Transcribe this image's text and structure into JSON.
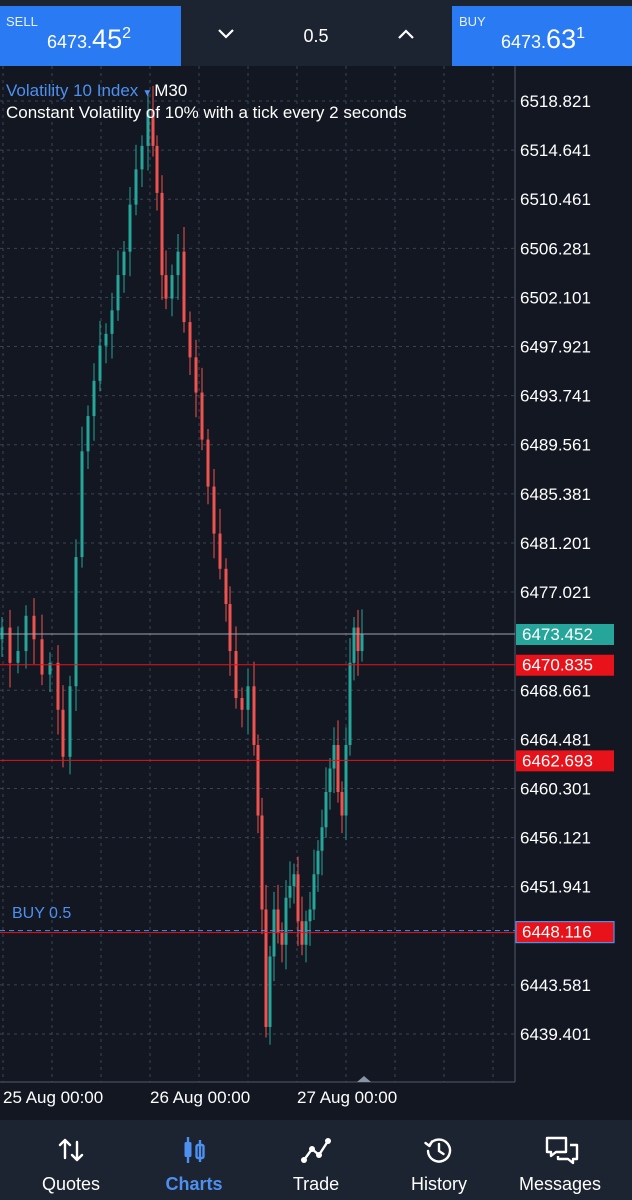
{
  "trade_bar": {
    "sell": {
      "label": "SELL",
      "price_a": "6473.",
      "price_b": "45",
      "price_c": "2"
    },
    "buy": {
      "label": "BUY",
      "price_a": "6473.",
      "price_b": "63",
      "price_c": "1"
    },
    "volume": "0.5"
  },
  "chart": {
    "symbol": "Volatility 10 Index",
    "timeframe": "M30",
    "description": "Constant Volatility of 10% with a tick every 2 seconds",
    "price_axis_labels": [
      "6518.821",
      "6514.641",
      "6510.461",
      "6506.281",
      "6502.101",
      "6497.921",
      "6493.741",
      "6489.561",
      "6485.381",
      "6481.201",
      "6477.021",
      "6468.661",
      "6464.481",
      "6460.301",
      "6456.121",
      "6451.941",
      "6443.581",
      "6439.401"
    ],
    "time_axis_labels": [
      "25 Aug 00:00",
      "26 Aug 00:00",
      "27 Aug 00:00"
    ],
    "current_price": "6473.452",
    "levels": [
      "6470.835",
      "6462.693"
    ],
    "order": {
      "label": "BUY 0.5",
      "price": "6448.116"
    },
    "colors": {
      "bull": "#26a69a",
      "bear": "#ef5350",
      "level": "#e8121a",
      "accent": "#2a7af3"
    }
  },
  "nav": [
    {
      "label": "Quotes",
      "icon": "quotes-icon"
    },
    {
      "label": "Charts",
      "icon": "charts-icon",
      "active": true
    },
    {
      "label": "Trade",
      "icon": "trade-icon"
    },
    {
      "label": "History",
      "icon": "history-icon"
    },
    {
      "label": "Messages",
      "icon": "messages-icon"
    }
  ]
}
